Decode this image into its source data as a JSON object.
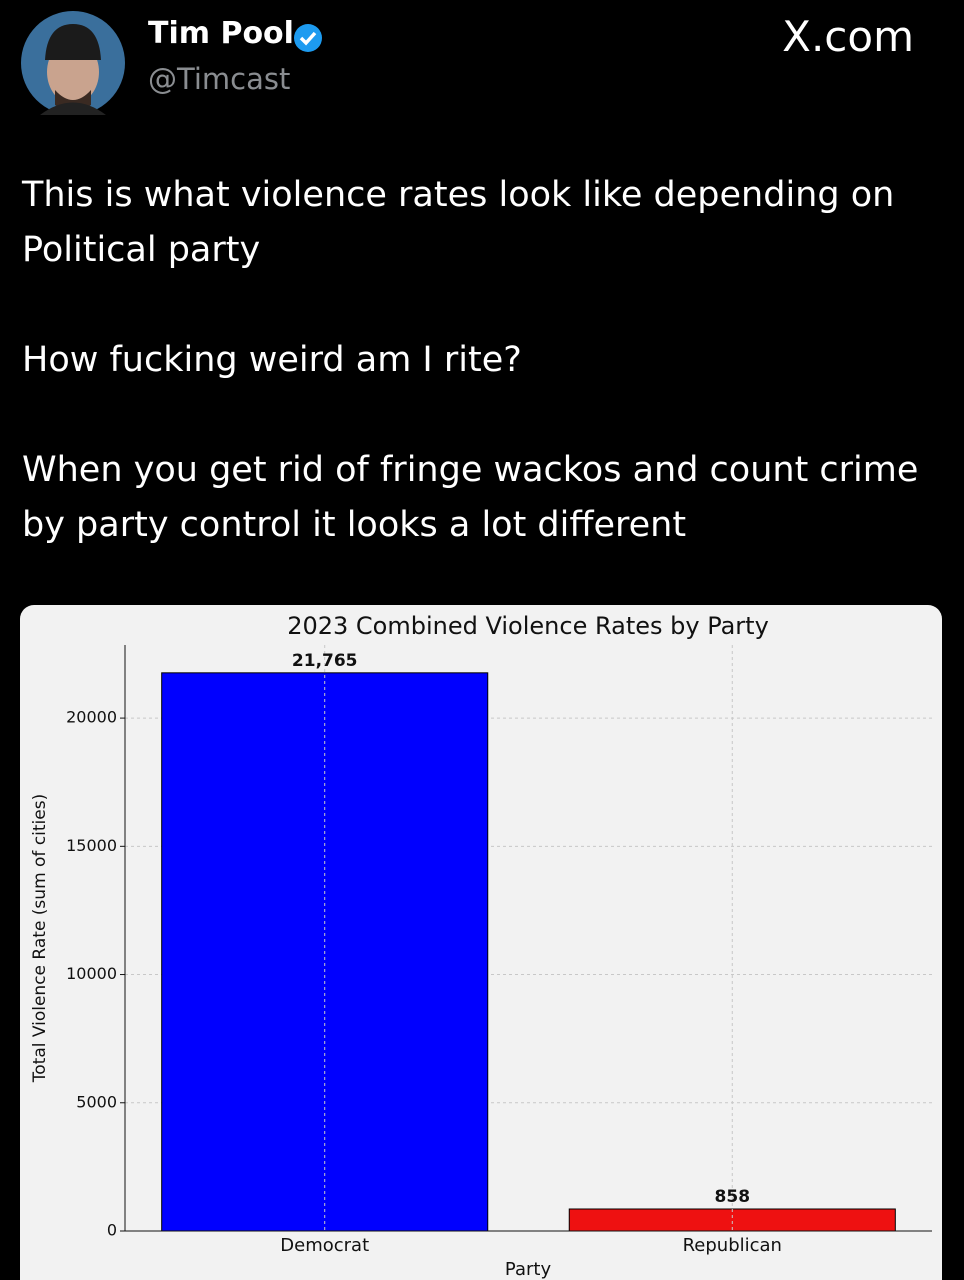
{
  "header": {
    "name": "Tim Pool",
    "handle": "@Timcast",
    "site": "X.com"
  },
  "tweet": {
    "paragraphs": [
      "This is what violence rates look like depending on Political party",
      "How fucking weird am I rite?",
      "When you get rid of fringe wackos and count crime by party control it looks a lot different"
    ]
  },
  "chart_data": {
    "type": "bar",
    "title": "2023 Combined Violence Rates by Party",
    "x_label": "Party",
    "y_label": "Total Violence Rate (sum of cities)",
    "categories": [
      "Democrat",
      "Republican"
    ],
    "values": [
      21765,
      858
    ],
    "value_labels": [
      "21,765",
      "858"
    ],
    "colors": [
      "#0000ff",
      "#ee1111"
    ],
    "ylim": [
      0,
      22850
    ],
    "yticks": [
      0,
      5000,
      10000,
      15000,
      20000
    ],
    "grid": true
  }
}
